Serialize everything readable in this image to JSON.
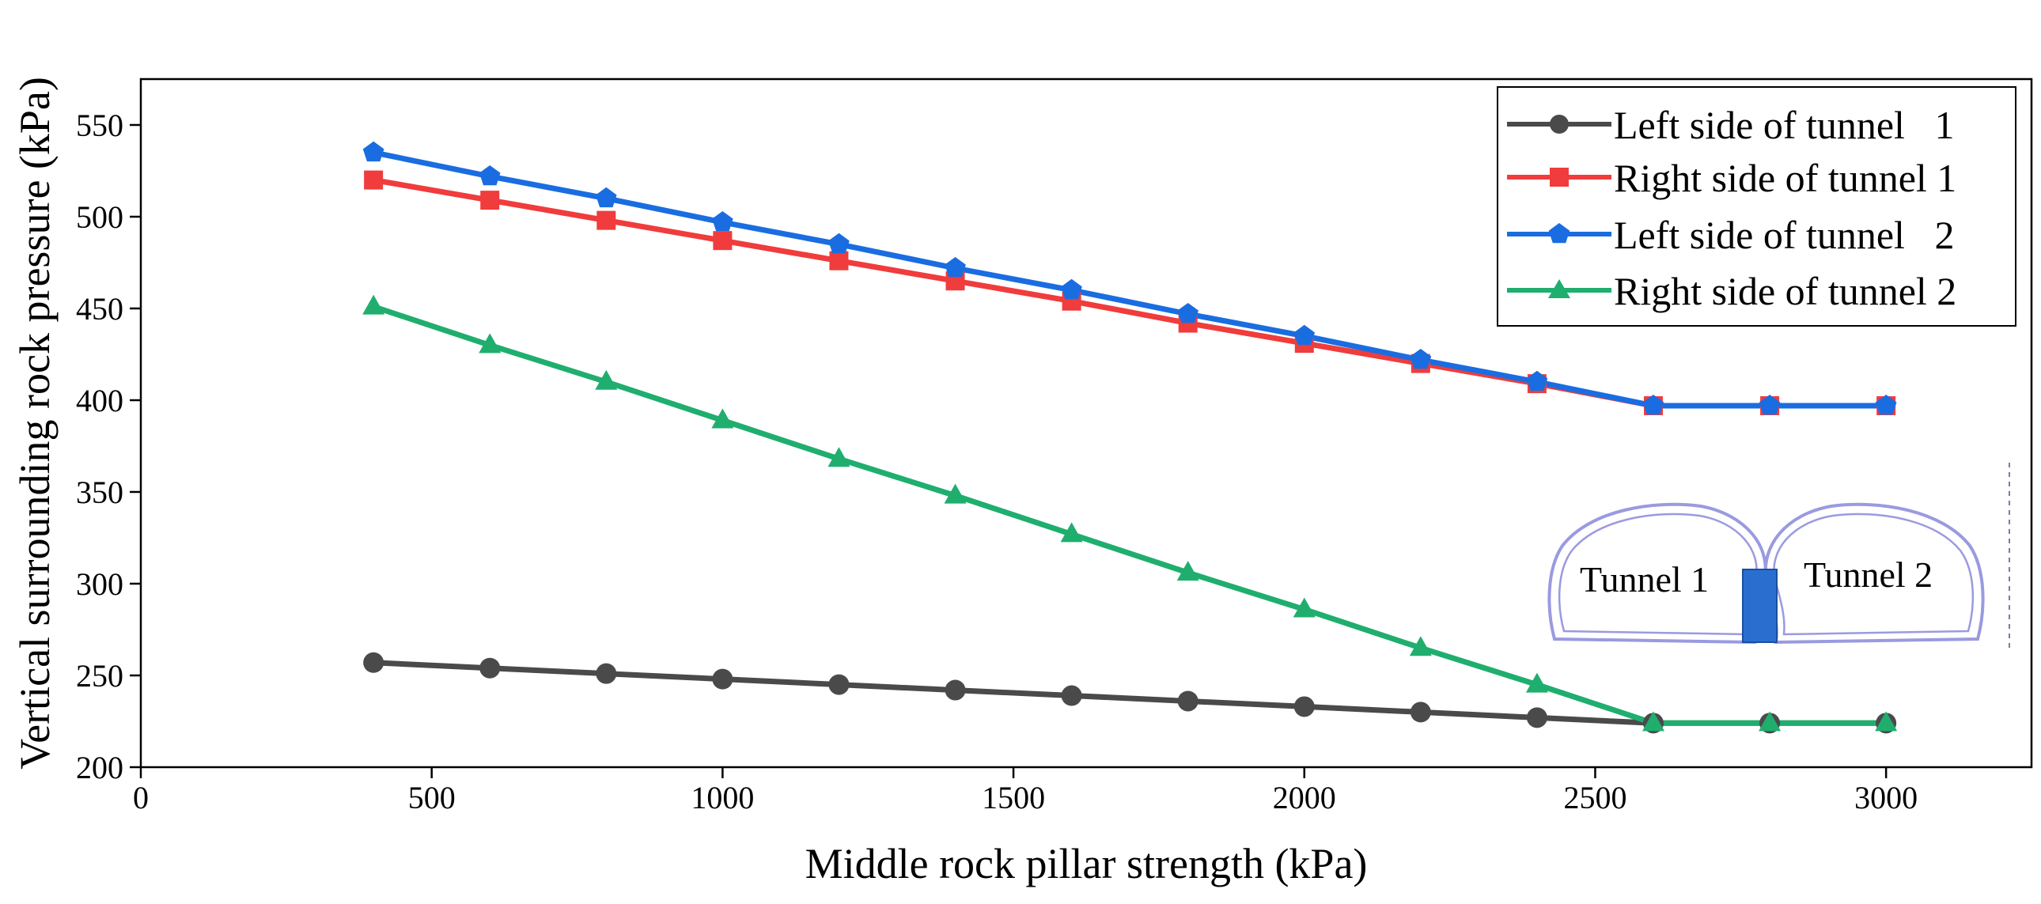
{
  "chart_data": {
    "type": "line",
    "title": "",
    "xlabel": "Middle rock pillar strength (kPa)",
    "ylabel": "Vertical surrounding rock pressure (kPa)",
    "xlim": [
      0,
      3250
    ],
    "ylim": [
      200,
      575
    ],
    "xticks": [
      0,
      500,
      1000,
      1500,
      2000,
      2500,
      3000
    ],
    "yticks": [
      200,
      250,
      300,
      350,
      400,
      450,
      500,
      550
    ],
    "grid": false,
    "legend_position": "top-right",
    "x": [
      400,
      600,
      800,
      1000,
      1200,
      1400,
      1600,
      1800,
      2000,
      2200,
      2400,
      2600,
      2800,
      3000
    ],
    "series": [
      {
        "name": "Left side of tunnel   1",
        "color": "#4a4a4a",
        "marker": "circle",
        "values": [
          257,
          254,
          251,
          248,
          245,
          242,
          239,
          236,
          233,
          230,
          227,
          224,
          224,
          224
        ]
      },
      {
        "name": "Right side of tunnel 1",
        "color": "#f03c3c",
        "marker": "square",
        "values": [
          520,
          509,
          498,
          487,
          476,
          465,
          454,
          442,
          431,
          420,
          409,
          397,
          397,
          397
        ]
      },
      {
        "name": "Left side of tunnel   2",
        "color": "#1a6de0",
        "marker": "pentagon",
        "values": [
          535,
          522,
          510,
          497,
          485,
          472,
          460,
          447,
          435,
          422,
          410,
          397,
          397,
          397
        ]
      },
      {
        "name": "Right side of tunnel 2",
        "color": "#1fae6e",
        "marker": "triangle",
        "values": [
          451,
          430,
          410,
          389,
          368,
          348,
          327,
          306,
          286,
          265,
          245,
          224,
          224,
          224
        ]
      }
    ],
    "inset": {
      "labels": [
        "Tunnel 1",
        "Tunnel 2"
      ],
      "outline_color": "#9a9ae0",
      "pillar_color": "#2a6fd0"
    }
  }
}
